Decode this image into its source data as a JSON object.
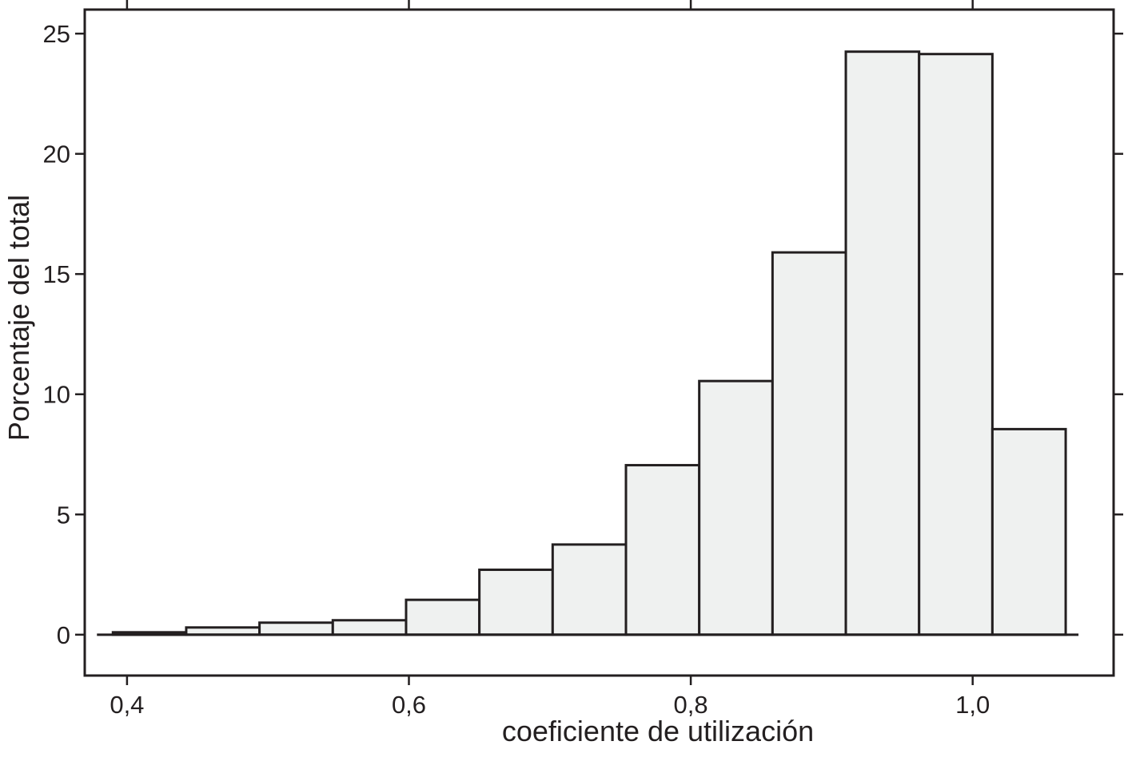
{
  "chart_data": {
    "type": "bar",
    "xlabel": "coeficiente de utilización",
    "ylabel": "Porcentaje del total",
    "bin_width": 0.052,
    "bin_starts": [
      0.39,
      0.442,
      0.494,
      0.546,
      0.598,
      0.65,
      0.702,
      0.754,
      0.806,
      0.858,
      0.91,
      0.962,
      1.014
    ],
    "values": [
      0.1,
      0.3,
      0.5,
      0.6,
      1.45,
      2.7,
      3.75,
      7.05,
      10.55,
      15.9,
      24.25,
      24.15,
      8.55
    ],
    "xlim": [
      0.37,
      1.1
    ],
    "ylim": [
      -1.7,
      26
    ],
    "x_ticks": [
      {
        "value": 0.4,
        "label": "0,4"
      },
      {
        "value": 0.6,
        "label": "0,6"
      },
      {
        "value": 0.8,
        "label": "0,8"
      },
      {
        "value": 1.0,
        "label": "1,0"
      }
    ],
    "y_ticks": [
      {
        "value": 0,
        "label": "0"
      },
      {
        "value": 5,
        "label": "5"
      },
      {
        "value": 10,
        "label": "10"
      },
      {
        "value": 15,
        "label": "15"
      },
      {
        "value": 20,
        "label": "20"
      },
      {
        "value": 25,
        "label": "25"
      }
    ],
    "grid": false,
    "bar_fill": "#eff1f0",
    "line_color": "#231f20"
  }
}
